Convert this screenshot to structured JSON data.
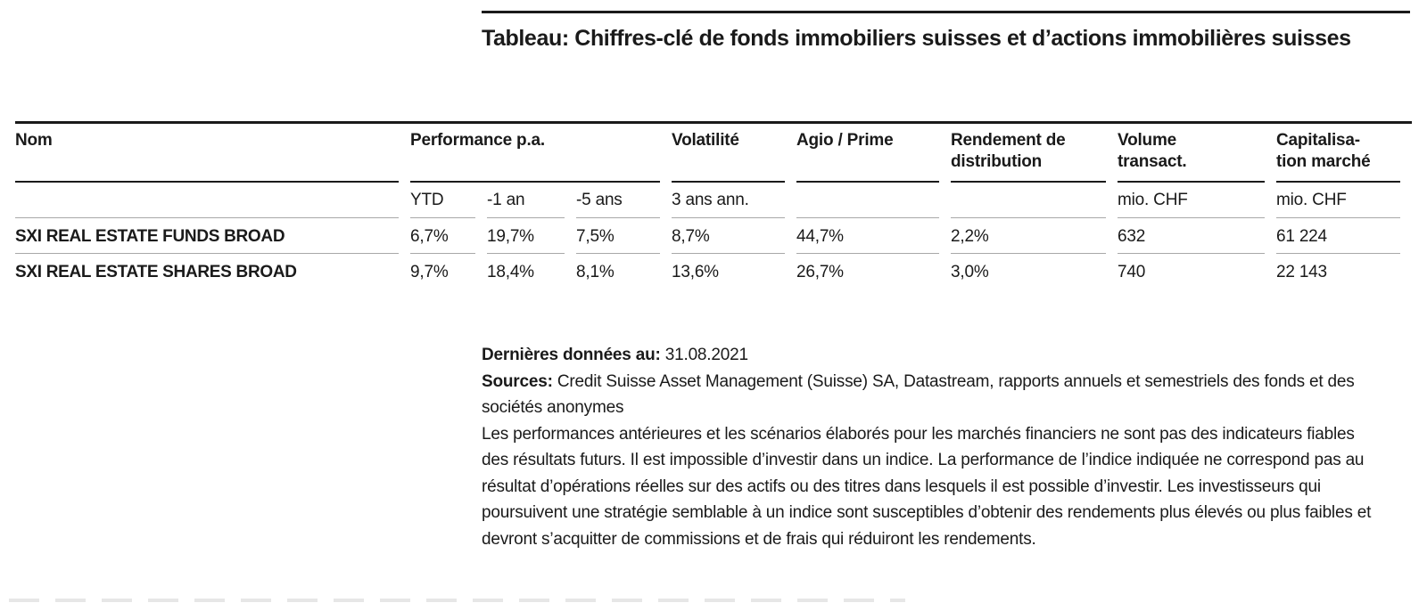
{
  "title": "Tableau: Chiffres-clé de fonds immobiliers suisses et d’actions immobilières suisses",
  "table": {
    "columns": {
      "nom": "Nom",
      "performance": "Performance p.a.",
      "volatilite": "Volatilité",
      "agio": "Agio / Prime",
      "rendement": "Rendement de\ndistribution",
      "volume": "Volume\ntransact.",
      "capitalisation": "Capitalisa-\ntion marché"
    },
    "subheaders": {
      "ytd": "YTD",
      "one_year": "-1 an",
      "five_years": "-5 ans",
      "vol_period": "3 ans ann.",
      "volume_unit": "mio. CHF",
      "cap_unit": "mio. CHF"
    },
    "rows": [
      {
        "name": "SXI REAL ESTATE FUNDS BROAD",
        "ytd": "6,7%",
        "one_year": "19,7%",
        "five_years": "7,5%",
        "volatility": "8,7%",
        "agio": "44,7%",
        "rendement": "2,2%",
        "volume": "632",
        "capitalisation": "61 224"
      },
      {
        "name": "SXI REAL ESTATE SHARES BROAD",
        "ytd": "9,7%",
        "one_year": "18,4%",
        "five_years": "8,1%",
        "volatility": "13,6%",
        "agio": "26,7%",
        "rendement": "3,0%",
        "volume": "740",
        "capitalisation": "22 143"
      }
    ]
  },
  "footer": {
    "last_data_label": "Dernières données au:",
    "last_data_value": "31.08.2021",
    "sources_label": "Sources:",
    "sources_value": "Credit Suisse Asset Management (Suisse) SA, Datastream, rapports annuels et semestriels des fonds et des sociétés anonymes",
    "disclaimer": "Les performances antérieures et les scénarios élaborés pour les marchés financiers ne sont pas des indicateurs fiables des résultats futurs. Il est impossible d’investir dans un indice. La performance de l’indice indiquée ne correspond pas au résultat d’opérations réelles sur des actifs ou des titres dans lesquels il est possible d’investir. Les investisseurs qui poursuivent une stratégie semblable à un indice sont susceptibles d’obtenir des rendements plus élevés ou plus faibles et devront s’acquitter de commissions et de frais qui réduiront les rendements."
  },
  "colors": {
    "text": "#1a1a1a",
    "rule_dark": "#1a1a1a",
    "rule_light": "#a8a8a8",
    "background": "#ffffff"
  }
}
